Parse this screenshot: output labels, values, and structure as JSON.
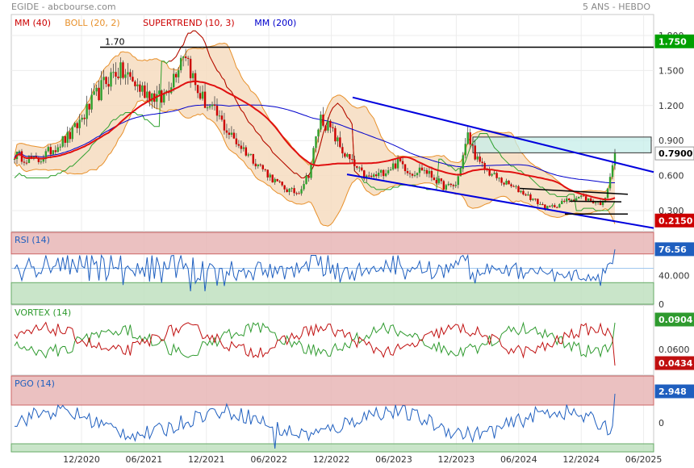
{
  "header": {
    "left": "EGIDE - abcbourse.com",
    "right": "5 ANS - HEBDO"
  },
  "chart_data": [
    {
      "type": "candlestick",
      "panel": "price",
      "indicators": [
        "MM (40)",
        "BOLL (20, 2)",
        "SUPERTREND (10, 3)",
        "MM (200)"
      ],
      "indicator_colors": [
        "#cc0000",
        "#e8902a",
        "#cc0000",
        "#0000cc"
      ],
      "y_ticks": [
        "1.800",
        "1.500",
        "1.200",
        "0.900",
        "0.600",
        "0.300"
      ],
      "y_tick_values": [
        1.8,
        1.5,
        1.2,
        0.9,
        0.6,
        0.3
      ],
      "ylim": [
        0.12,
        1.98
      ],
      "annotations": [
        {
          "text": "1.70",
          "value": 1.7
        }
      ],
      "value_badges": [
        {
          "text": "1.750",
          "value": 1.75,
          "color": "#00a000"
        },
        {
          "text": "0.7900",
          "value": 0.79,
          "color": "#ffffff",
          "text_color": "#000000"
        },
        {
          "text": "0.2150",
          "value": 0.215,
          "color": "#cc0000"
        }
      ],
      "ohlc_weekly_approx": {
        "start": "2020-06",
        "close_path": [
          0.78,
          0.75,
          0.72,
          0.8,
          0.88,
          0.95,
          1.1,
          1.25,
          1.4,
          1.5,
          1.45,
          1.35,
          1.3,
          1.25,
          1.45,
          1.7,
          1.35,
          1.2,
          1.1,
          0.95,
          0.85,
          0.75,
          0.65,
          0.55,
          0.48,
          0.45,
          0.62,
          1.1,
          0.98,
          0.8,
          0.68,
          0.58,
          0.6,
          0.66,
          0.72,
          0.62,
          0.66,
          0.58,
          0.5,
          0.52,
          0.94,
          0.7,
          0.62,
          0.55,
          0.5,
          0.45,
          0.38,
          0.32,
          0.35,
          0.4,
          0.42,
          0.38,
          0.36,
          0.79
        ]
      }
    },
    {
      "type": "line",
      "panel": "RSI",
      "series": [
        {
          "name": "RSI (14)",
          "color": "#1f5fbf"
        }
      ],
      "y_ticks": [
        "40.000",
        "0"
      ],
      "y_tick_values": [
        40,
        0
      ],
      "ylim": [
        0,
        100
      ],
      "value_badges": [
        {
          "text": "76.56",
          "value": 76.56,
          "color": "#1f5fbf"
        }
      ]
    },
    {
      "type": "line",
      "panel": "VORTEX",
      "series": [
        {
          "name": "VORTEX (14)",
          "color": "#2e9a2e"
        },
        {
          "name": "",
          "color": "#c01010"
        }
      ],
      "y_ticks": [
        "0.0600"
      ],
      "value_badges": [
        {
          "text": "0.0904",
          "color": "#2e9a2e"
        },
        {
          "text": "0.0434",
          "color": "#c01010"
        }
      ]
    },
    {
      "type": "line",
      "panel": "PGO",
      "series": [
        {
          "name": "PGO (14)",
          "color": "#1f5fbf"
        }
      ],
      "y_ticks": [
        "0"
      ],
      "y_tick_values": [
        0
      ],
      "value_badges": [
        {
          "text": "2.948",
          "value": 2.948,
          "color": "#1f5fbf"
        }
      ]
    }
  ],
  "x_axis": {
    "labels": [
      "12/2020",
      "06/2021",
      "12/2021",
      "06/2022",
      "12/2022",
      "06/2023",
      "12/2023",
      "06/2024",
      "12/2024",
      "06/2025"
    ]
  }
}
